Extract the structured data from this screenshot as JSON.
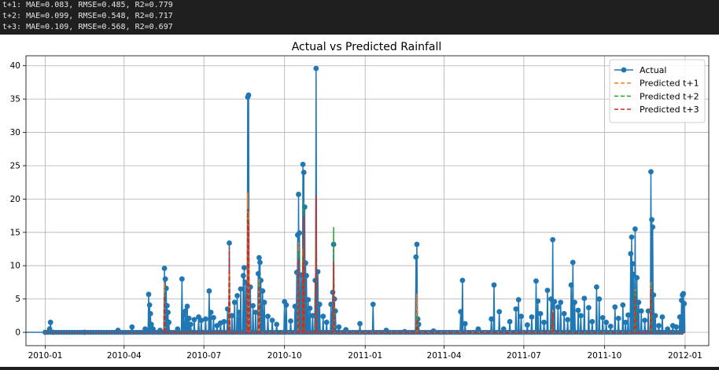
{
  "console": {
    "lines": [
      "t+1: MAE=0.083, RMSE=0.485, R2=0.779",
      "t+2: MAE=0.099, RMSE=0.548, R2=0.717",
      "t+3: MAE=0.109, RMSE=0.568, R2=0.697"
    ]
  },
  "chart_data": {
    "type": "line",
    "title": "Actual vs Predicted Rainfall",
    "xlabel": "",
    "ylabel": "",
    "x_range": [
      "2009-12-10",
      "2012-01-28"
    ],
    "ylim": [
      -2,
      41.5
    ],
    "grid": true,
    "legend_position": "top-right",
    "x_ticks": [
      "2010-01",
      "2010-04",
      "2010-07",
      "2010-10",
      "2011-01",
      "2011-04",
      "2011-07",
      "2011-10",
      "2012-01"
    ],
    "y_ticks": [
      0,
      5,
      10,
      15,
      20,
      25,
      30,
      35,
      40
    ],
    "colors": {
      "actual": "#1f77b4",
      "t1": "#ff7f0e",
      "t2": "#2ca02c",
      "t3": "#d62728"
    },
    "series": [
      {
        "name": "Actual",
        "style": "solid-marker",
        "color": "#1f77b4",
        "points": [
          [
            "2010-01-01",
            0
          ],
          [
            "2010-01-06",
            0.5
          ],
          [
            "2010-01-07",
            1.5
          ],
          [
            "2010-01-10",
            0
          ],
          [
            "2010-02-15",
            0
          ],
          [
            "2010-03-25",
            0.3
          ],
          [
            "2010-04-10",
            0.8
          ],
          [
            "2010-04-25",
            0.5
          ],
          [
            "2010-04-29",
            5.7
          ],
          [
            "2010-04-30",
            4.1
          ],
          [
            "2010-05-01",
            2.8
          ],
          [
            "2010-05-02",
            1.2
          ],
          [
            "2010-05-04",
            0.5
          ],
          [
            "2010-05-12",
            0.3
          ],
          [
            "2010-05-17",
            9.6
          ],
          [
            "2010-05-18",
            8.0
          ],
          [
            "2010-05-19",
            6.6
          ],
          [
            "2010-05-20",
            4.0
          ],
          [
            "2010-05-21",
            3.0
          ],
          [
            "2010-05-22",
            1.5
          ],
          [
            "2010-06-01",
            0.5
          ],
          [
            "2010-06-06",
            8.0
          ],
          [
            "2010-06-08",
            2.6
          ],
          [
            "2010-06-10",
            3.2
          ],
          [
            "2010-06-12",
            3.9
          ],
          [
            "2010-06-14",
            2.1
          ],
          [
            "2010-06-16",
            1.2
          ],
          [
            "2010-06-20",
            1.9
          ],
          [
            "2010-06-25",
            2.3
          ],
          [
            "2010-06-28",
            1.8
          ],
          [
            "2010-07-03",
            2.0
          ],
          [
            "2010-07-07",
            6.2
          ],
          [
            "2010-07-09",
            3.0
          ],
          [
            "2010-07-12",
            2.2
          ],
          [
            "2010-07-16",
            1.0
          ],
          [
            "2010-07-20",
            1.4
          ],
          [
            "2010-07-24",
            1.6
          ],
          [
            "2010-07-28",
            3.5
          ],
          [
            "2010-07-30",
            13.4
          ],
          [
            "2010-08-02",
            2.5
          ],
          [
            "2010-08-05",
            4.5
          ],
          [
            "2010-08-08",
            5.5
          ],
          [
            "2010-08-10",
            3.0
          ],
          [
            "2010-08-12",
            6.5
          ],
          [
            "2010-08-15",
            8.5
          ],
          [
            "2010-08-16",
            9.7
          ],
          [
            "2010-08-18",
            7.5
          ],
          [
            "2010-08-20",
            35.3
          ],
          [
            "2010-08-21",
            35.6
          ],
          [
            "2010-08-23",
            6.8
          ],
          [
            "2010-08-26",
            4.0
          ],
          [
            "2010-08-29",
            3.0
          ],
          [
            "2010-09-01",
            8.8
          ],
          [
            "2010-09-02",
            11.2
          ],
          [
            "2010-09-03",
            10.5
          ],
          [
            "2010-09-04",
            7.8
          ],
          [
            "2010-09-06",
            6.2
          ],
          [
            "2010-09-08",
            4.5
          ],
          [
            "2010-09-12",
            2.4
          ],
          [
            "2010-09-17",
            1.8
          ],
          [
            "2010-09-22",
            1.2
          ],
          [
            "2010-10-01",
            4.6
          ],
          [
            "2010-10-03",
            4.1
          ],
          [
            "2010-10-08",
            1.7
          ],
          [
            "2010-10-13",
            3.9
          ],
          [
            "2010-10-15",
            9.0
          ],
          [
            "2010-10-16",
            14.6
          ],
          [
            "2010-10-17",
            20.7
          ],
          [
            "2010-10-18",
            14.9
          ],
          [
            "2010-10-20",
            8.6
          ],
          [
            "2010-10-22",
            25.2
          ],
          [
            "2010-10-23",
            24.0
          ],
          [
            "2010-10-24",
            18.8
          ],
          [
            "2010-10-25",
            10.4
          ],
          [
            "2010-10-26",
            8.5
          ],
          [
            "2010-10-28",
            4.9
          ],
          [
            "2010-10-30",
            3.6
          ],
          [
            "2010-11-02",
            2.5
          ],
          [
            "2010-11-05",
            7.8
          ],
          [
            "2010-11-06",
            39.6
          ],
          [
            "2010-11-08",
            9.1
          ],
          [
            "2010-11-10",
            4.2
          ],
          [
            "2010-11-14",
            2.4
          ],
          [
            "2010-11-18",
            1.5
          ],
          [
            "2010-11-23",
            4.2
          ],
          [
            "2010-11-25",
            6.0
          ],
          [
            "2010-11-26",
            13.2
          ],
          [
            "2010-11-27",
            5.0
          ],
          [
            "2010-11-28",
            3.2
          ],
          [
            "2010-12-02",
            0.8
          ],
          [
            "2010-12-10",
            0.4
          ],
          [
            "2010-12-26",
            1.3
          ],
          [
            "2011-01-10",
            4.2
          ],
          [
            "2011-01-25",
            0.3
          ],
          [
            "2011-02-15",
            0.1
          ],
          [
            "2011-02-28",
            11.3
          ],
          [
            "2011-03-01",
            13.2
          ],
          [
            "2011-03-02",
            2.0
          ],
          [
            "2011-03-03",
            1.2
          ],
          [
            "2011-03-20",
            0.2
          ],
          [
            "2011-04-20",
            3.1
          ],
          [
            "2011-04-22",
            7.8
          ],
          [
            "2011-04-25",
            1.3
          ],
          [
            "2011-05-10",
            0.5
          ],
          [
            "2011-05-25",
            2.0
          ],
          [
            "2011-05-28",
            7.1
          ],
          [
            "2011-06-03",
            3.1
          ],
          [
            "2011-06-08",
            0.5
          ],
          [
            "2011-06-15",
            1.6
          ],
          [
            "2011-06-22",
            3.5
          ],
          [
            "2011-06-25",
            4.9
          ],
          [
            "2011-06-28",
            2.4
          ],
          [
            "2011-07-05",
            1.1
          ],
          [
            "2011-07-10",
            2.3
          ],
          [
            "2011-07-15",
            7.7
          ],
          [
            "2011-07-17",
            4.7
          ],
          [
            "2011-07-20",
            2.8
          ],
          [
            "2011-07-24",
            1.5
          ],
          [
            "2011-07-28",
            6.3
          ],
          [
            "2011-08-01",
            5.0
          ],
          [
            "2011-08-03",
            13.9
          ],
          [
            "2011-08-05",
            4.6
          ],
          [
            "2011-08-09",
            3.8
          ],
          [
            "2011-08-12",
            4.5
          ],
          [
            "2011-08-16",
            2.8
          ],
          [
            "2011-08-20",
            1.9
          ],
          [
            "2011-08-24",
            7.1
          ],
          [
            "2011-08-26",
            10.5
          ],
          [
            "2011-08-28",
            4.5
          ],
          [
            "2011-09-01",
            3.3
          ],
          [
            "2011-09-04",
            2.5
          ],
          [
            "2011-09-08",
            5.1
          ],
          [
            "2011-09-13",
            3.7
          ],
          [
            "2011-09-17",
            1.6
          ],
          [
            "2011-09-22",
            6.8
          ],
          [
            "2011-09-25",
            5.0
          ],
          [
            "2011-09-29",
            2.2
          ],
          [
            "2011-10-03",
            1.5
          ],
          [
            "2011-10-08",
            0.9
          ],
          [
            "2011-10-13",
            3.8
          ],
          [
            "2011-10-17",
            2.1
          ],
          [
            "2011-10-22",
            4.1
          ],
          [
            "2011-10-25",
            1.5
          ],
          [
            "2011-10-28",
            2.6
          ],
          [
            "2011-10-31",
            11.8
          ],
          [
            "2011-11-01",
            14.3
          ],
          [
            "2011-11-02",
            10.3
          ],
          [
            "2011-11-03",
            8.7
          ],
          [
            "2011-11-05",
            15.5
          ],
          [
            "2011-11-07",
            8.2
          ],
          [
            "2011-11-09",
            4.5
          ],
          [
            "2011-11-12",
            3.2
          ],
          [
            "2011-11-16",
            1.8
          ],
          [
            "2011-11-20",
            3.2
          ],
          [
            "2011-11-23",
            24.1
          ],
          [
            "2011-11-24",
            16.9
          ],
          [
            "2011-11-25",
            15.8
          ],
          [
            "2011-11-26",
            5.6
          ],
          [
            "2011-11-28",
            2.5
          ],
          [
            "2011-12-02",
            1.0
          ],
          [
            "2011-12-06",
            2.3
          ],
          [
            "2011-12-12",
            0.5
          ],
          [
            "2011-12-18",
            1.0
          ],
          [
            "2011-12-22",
            0.8
          ],
          [
            "2011-12-26",
            2.3
          ],
          [
            "2011-12-28",
            4.8
          ],
          [
            "2011-12-29",
            5.6
          ],
          [
            "2011-12-30",
            5.8
          ],
          [
            "2011-12-31",
            4.3
          ]
        ]
      },
      {
        "name": "Predicted t+1",
        "style": "dashed",
        "color": "#ff7f0e",
        "points": [
          [
            "2010-05-17",
            7.5
          ],
          [
            "2010-07-30",
            9.0
          ],
          [
            "2010-08-20",
            21.0
          ],
          [
            "2010-08-21",
            18.0
          ],
          [
            "2010-09-02",
            8.0
          ],
          [
            "2010-10-17",
            13.5
          ],
          [
            "2010-10-22",
            12.5
          ],
          [
            "2010-10-23",
            15.5
          ],
          [
            "2010-11-06",
            19.0
          ],
          [
            "2010-11-26",
            9.5
          ],
          [
            "2011-03-01",
            5.8
          ],
          [
            "2011-08-03",
            3.5
          ],
          [
            "2011-11-05",
            6.5
          ],
          [
            "2011-11-23",
            7.5
          ]
        ]
      },
      {
        "name": "Predicted t+2",
        "style": "dashed",
        "color": "#2ca02c",
        "points": [
          [
            "2010-05-17",
            6.0
          ],
          [
            "2010-07-30",
            8.5
          ],
          [
            "2010-08-20",
            18.5
          ],
          [
            "2010-08-21",
            17.0
          ],
          [
            "2010-09-02",
            7.5
          ],
          [
            "2010-10-17",
            12.0
          ],
          [
            "2010-10-22",
            11.5
          ],
          [
            "2010-10-23",
            19.8
          ],
          [
            "2010-11-06",
            18.5
          ],
          [
            "2010-11-26",
            15.8
          ],
          [
            "2011-03-01",
            2.5
          ],
          [
            "2011-08-03",
            3.0
          ],
          [
            "2011-11-05",
            6.0
          ],
          [
            "2011-11-23",
            7.0
          ]
        ]
      },
      {
        "name": "Predicted t+3",
        "style": "dashed",
        "color": "#d62728",
        "points": [
          [
            "2010-05-17",
            5.5
          ],
          [
            "2010-07-30",
            12.8
          ],
          [
            "2010-08-20",
            18.5
          ],
          [
            "2010-08-21",
            16.5
          ],
          [
            "2010-09-02",
            7.0
          ],
          [
            "2010-10-17",
            11.0
          ],
          [
            "2010-10-22",
            10.5
          ],
          [
            "2010-10-23",
            17.5
          ],
          [
            "2010-11-06",
            20.5
          ],
          [
            "2010-11-26",
            10.5
          ],
          [
            "2011-03-01",
            2.0
          ],
          [
            "2011-08-03",
            3.0
          ],
          [
            "2011-11-05",
            5.5
          ],
          [
            "2011-11-23",
            6.5
          ]
        ]
      }
    ]
  }
}
